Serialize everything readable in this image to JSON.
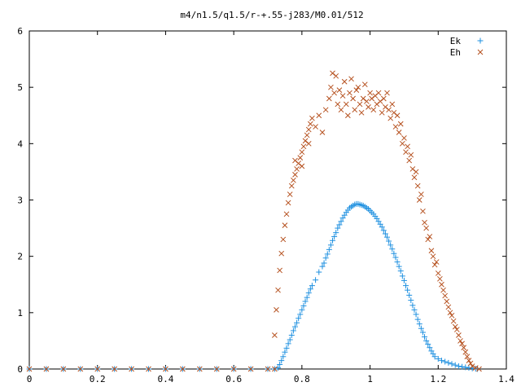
{
  "colors": {
    "Ek": "#1e90e0",
    "Eh": "#b5501e",
    "axis": "#000000",
    "background": "#ffffff"
  },
  "chart_data": {
    "type": "scatter",
    "title": "m4/n1.5/q1.5/r-+.55-j283/M0.01/512",
    "xlabel": "",
    "ylabel": "",
    "xlim": [
      0,
      1.4
    ],
    "ylim": [
      0,
      6
    ],
    "xticks": [
      "0",
      "0.2",
      "0.4",
      "0.6",
      "0.8",
      "1",
      "1.2",
      "1.4"
    ],
    "yticks": [
      "0",
      "1",
      "2",
      "3",
      "4",
      "5",
      "6"
    ],
    "grid": false,
    "legend_position": "top-right",
    "series": [
      {
        "name": "Ek",
        "marker": "plus",
        "color": "#1e90e0",
        "points": [
          [
            0.0,
            0
          ],
          [
            0.05,
            0
          ],
          [
            0.1,
            0
          ],
          [
            0.15,
            0
          ],
          [
            0.2,
            0
          ],
          [
            0.25,
            0
          ],
          [
            0.3,
            0
          ],
          [
            0.35,
            0
          ],
          [
            0.4,
            0
          ],
          [
            0.45,
            0
          ],
          [
            0.5,
            0
          ],
          [
            0.55,
            0
          ],
          [
            0.6,
            0
          ],
          [
            0.65,
            0
          ],
          [
            0.7,
            0
          ],
          [
            0.72,
            0
          ],
          [
            0.73,
            0.02
          ],
          [
            0.735,
            0.08
          ],
          [
            0.74,
            0.15
          ],
          [
            0.745,
            0.22
          ],
          [
            0.75,
            0.3
          ],
          [
            0.755,
            0.37
          ],
          [
            0.76,
            0.45
          ],
          [
            0.765,
            0.52
          ],
          [
            0.77,
            0.6
          ],
          [
            0.775,
            0.68
          ],
          [
            0.78,
            0.75
          ],
          [
            0.785,
            0.82
          ],
          [
            0.79,
            0.9
          ],
          [
            0.795,
            0.97
          ],
          [
            0.8,
            1.05
          ],
          [
            0.805,
            1.12
          ],
          [
            0.81,
            1.2
          ],
          [
            0.815,
            1.27
          ],
          [
            0.82,
            1.35
          ],
          [
            0.825,
            1.42
          ],
          [
            0.83,
            1.48
          ],
          [
            0.84,
            1.58
          ],
          [
            0.85,
            1.72
          ],
          [
            0.86,
            1.82
          ],
          [
            0.865,
            1.88
          ],
          [
            0.87,
            1.97
          ],
          [
            0.875,
            2.04
          ],
          [
            0.88,
            2.12
          ],
          [
            0.885,
            2.2
          ],
          [
            0.89,
            2.28
          ],
          [
            0.895,
            2.35
          ],
          [
            0.9,
            2.42
          ],
          [
            0.905,
            2.5
          ],
          [
            0.91,
            2.56
          ],
          [
            0.915,
            2.62
          ],
          [
            0.92,
            2.68
          ],
          [
            0.925,
            2.73
          ],
          [
            0.93,
            2.78
          ],
          [
            0.935,
            2.82
          ],
          [
            0.94,
            2.86
          ],
          [
            0.945,
            2.88
          ],
          [
            0.95,
            2.9
          ],
          [
            0.955,
            2.92
          ],
          [
            0.96,
            2.93
          ],
          [
            0.965,
            2.93
          ],
          [
            0.97,
            2.92
          ],
          [
            0.975,
            2.91
          ],
          [
            0.98,
            2.9
          ],
          [
            0.985,
            2.88
          ],
          [
            0.99,
            2.86
          ],
          [
            0.995,
            2.84
          ],
          [
            1.0,
            2.81
          ],
          [
            1.005,
            2.78
          ],
          [
            1.01,
            2.75
          ],
          [
            1.015,
            2.71
          ],
          [
            1.02,
            2.67
          ],
          [
            1.025,
            2.62
          ],
          [
            1.03,
            2.57
          ],
          [
            1.035,
            2.52
          ],
          [
            1.04,
            2.46
          ],
          [
            1.045,
            2.4
          ],
          [
            1.05,
            2.34
          ],
          [
            1.055,
            2.27
          ],
          [
            1.06,
            2.2
          ],
          [
            1.065,
            2.13
          ],
          [
            1.07,
            2.05
          ],
          [
            1.075,
            1.98
          ],
          [
            1.08,
            1.9
          ],
          [
            1.085,
            1.82
          ],
          [
            1.09,
            1.74
          ],
          [
            1.095,
            1.65
          ],
          [
            1.1,
            1.57
          ],
          [
            1.105,
            1.48
          ],
          [
            1.11,
            1.4
          ],
          [
            1.115,
            1.31
          ],
          [
            1.12,
            1.22
          ],
          [
            1.125,
            1.13
          ],
          [
            1.13,
            1.05
          ],
          [
            1.135,
            0.97
          ],
          [
            1.14,
            0.88
          ],
          [
            1.145,
            0.8
          ],
          [
            1.15,
            0.72
          ],
          [
            1.155,
            0.65
          ],
          [
            1.16,
            0.57
          ],
          [
            1.165,
            0.5
          ],
          [
            1.17,
            0.44
          ],
          [
            1.175,
            0.38
          ],
          [
            1.18,
            0.32
          ],
          [
            1.185,
            0.27
          ],
          [
            1.19,
            0.22
          ],
          [
            1.2,
            0.18
          ],
          [
            1.21,
            0.15
          ],
          [
            1.22,
            0.13
          ],
          [
            1.23,
            0.11
          ],
          [
            1.24,
            0.09
          ],
          [
            1.25,
            0.07
          ],
          [
            1.26,
            0.05
          ],
          [
            1.27,
            0.04
          ],
          [
            1.28,
            0.03
          ],
          [
            1.29,
            0.02
          ],
          [
            1.3,
            0.01
          ],
          [
            1.31,
            0.005
          ],
          [
            1.315,
            0
          ]
        ]
      },
      {
        "name": "Eh",
        "marker": "cross",
        "color": "#b5501e",
        "points": [
          [
            0.0,
            0
          ],
          [
            0.05,
            0
          ],
          [
            0.1,
            0
          ],
          [
            0.15,
            0
          ],
          [
            0.2,
            0
          ],
          [
            0.25,
            0
          ],
          [
            0.3,
            0
          ],
          [
            0.35,
            0
          ],
          [
            0.4,
            0
          ],
          [
            0.45,
            0
          ],
          [
            0.5,
            0
          ],
          [
            0.55,
            0
          ],
          [
            0.6,
            0
          ],
          [
            0.65,
            0
          ],
          [
            0.7,
            0
          ],
          [
            0.72,
            0
          ],
          [
            0.72,
            0.6
          ],
          [
            0.725,
            1.05
          ],
          [
            0.73,
            1.4
          ],
          [
            0.735,
            1.75
          ],
          [
            0.74,
            2.05
          ],
          [
            0.745,
            2.3
          ],
          [
            0.75,
            2.55
          ],
          [
            0.755,
            2.75
          ],
          [
            0.76,
            2.95
          ],
          [
            0.765,
            3.1
          ],
          [
            0.77,
            3.25
          ],
          [
            0.775,
            3.35
          ],
          [
            0.78,
            3.45
          ],
          [
            0.785,
            3.55
          ],
          [
            0.79,
            3.65
          ],
          [
            0.795,
            3.75
          ],
          [
            0.8,
            3.85
          ],
          [
            0.805,
            3.95
          ],
          [
            0.81,
            4.05
          ],
          [
            0.815,
            4.15
          ],
          [
            0.82,
            4.25
          ],
          [
            0.825,
            4.35
          ],
          [
            0.83,
            4.45
          ],
          [
            0.78,
            3.7
          ],
          [
            0.8,
            3.6
          ],
          [
            0.82,
            4.0
          ],
          [
            0.84,
            4.3
          ],
          [
            0.85,
            4.5
          ],
          [
            0.86,
            4.2
          ],
          [
            0.87,
            4.6
          ],
          [
            0.88,
            4.8
          ],
          [
            0.885,
            5.0
          ],
          [
            0.89,
            5.25
          ],
          [
            0.895,
            4.9
          ],
          [
            0.9,
            5.2
          ],
          [
            0.905,
            4.7
          ],
          [
            0.91,
            4.95
          ],
          [
            0.915,
            4.6
          ],
          [
            0.92,
            4.85
          ],
          [
            0.925,
            5.1
          ],
          [
            0.93,
            4.7
          ],
          [
            0.935,
            4.5
          ],
          [
            0.94,
            4.9
          ],
          [
            0.945,
            5.15
          ],
          [
            0.95,
            4.8
          ],
          [
            0.955,
            4.6
          ],
          [
            0.96,
            4.95
          ],
          [
            0.965,
            5.0
          ],
          [
            0.97,
            4.7
          ],
          [
            0.975,
            4.55
          ],
          [
            0.98,
            4.8
          ],
          [
            0.985,
            5.05
          ],
          [
            0.99,
            4.75
          ],
          [
            0.995,
            4.65
          ],
          [
            1.0,
            4.9
          ],
          [
            1.005,
            4.8
          ],
          [
            1.01,
            4.6
          ],
          [
            1.015,
            4.85
          ],
          [
            1.02,
            4.7
          ],
          [
            1.025,
            4.9
          ],
          [
            1.03,
            4.75
          ],
          [
            1.035,
            4.55
          ],
          [
            1.04,
            4.8
          ],
          [
            1.045,
            4.65
          ],
          [
            1.05,
            4.9
          ],
          [
            1.055,
            4.6
          ],
          [
            1.06,
            4.45
          ],
          [
            1.065,
            4.7
          ],
          [
            1.07,
            4.55
          ],
          [
            1.075,
            4.3
          ],
          [
            1.08,
            4.5
          ],
          [
            1.085,
            4.2
          ],
          [
            1.09,
            4.35
          ],
          [
            1.095,
            4.0
          ],
          [
            1.1,
            4.1
          ],
          [
            1.105,
            3.85
          ],
          [
            1.11,
            3.95
          ],
          [
            1.115,
            3.7
          ],
          [
            1.12,
            3.8
          ],
          [
            1.125,
            3.55
          ],
          [
            1.13,
            3.4
          ],
          [
            1.135,
            3.5
          ],
          [
            1.14,
            3.25
          ],
          [
            1.145,
            3.0
          ],
          [
            1.15,
            3.1
          ],
          [
            1.155,
            2.8
          ],
          [
            1.16,
            2.6
          ],
          [
            1.165,
            2.5
          ],
          [
            1.17,
            2.3
          ],
          [
            1.175,
            2.35
          ],
          [
            1.18,
            2.1
          ],
          [
            1.185,
            2.0
          ],
          [
            1.19,
            1.85
          ],
          [
            1.195,
            1.9
          ],
          [
            1.2,
            1.7
          ],
          [
            1.205,
            1.6
          ],
          [
            1.21,
            1.5
          ],
          [
            1.215,
            1.4
          ],
          [
            1.22,
            1.3
          ],
          [
            1.225,
            1.2
          ],
          [
            1.23,
            1.1
          ],
          [
            1.235,
            1.0
          ],
          [
            1.24,
            0.95
          ],
          [
            1.245,
            0.85
          ],
          [
            1.25,
            0.75
          ],
          [
            1.255,
            0.7
          ],
          [
            1.26,
            0.6
          ],
          [
            1.265,
            0.5
          ],
          [
            1.27,
            0.45
          ],
          [
            1.275,
            0.38
          ],
          [
            1.28,
            0.3
          ],
          [
            1.285,
            0.22
          ],
          [
            1.29,
            0.15
          ],
          [
            1.295,
            0.1
          ],
          [
            1.3,
            0.05
          ],
          [
            1.31,
            0.02
          ],
          [
            1.32,
            0
          ]
        ]
      }
    ]
  }
}
